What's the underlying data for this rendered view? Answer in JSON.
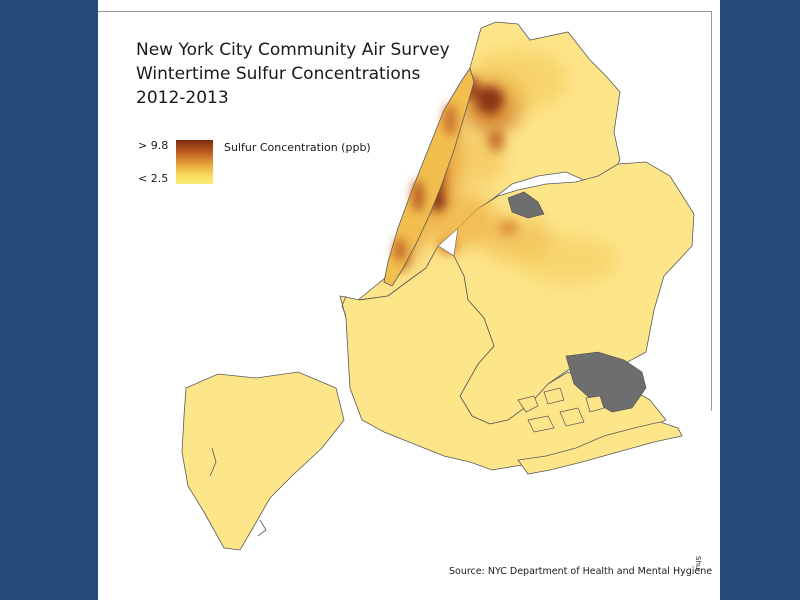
{
  "title": {
    "line1": "New York City Community Air Survey",
    "line2": "Wintertime Sulfur Concentrations",
    "line3": "2012-2013"
  },
  "legend": {
    "max_label": "> 9.8",
    "min_label": "< 2.5",
    "variable_label": "Sulfur Concentration (ppb)",
    "max_value": 9.8,
    "min_value": 2.5,
    "high_color": "#7a2a10",
    "low_color": "#fbeb78"
  },
  "source": "Source: NYC Department of Health and Mental Hygiene",
  "corner_mark": "Shu",
  "colors": {
    "background": "#244a7c",
    "panel": "#ffffff",
    "land_base": "#fde58a",
    "park": "#6e6e6e"
  }
}
